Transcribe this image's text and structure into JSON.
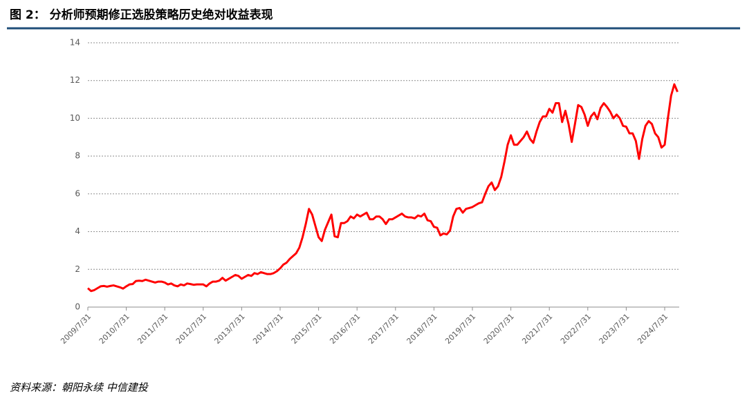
{
  "title": "图 2：  分析师预期修正选股策略历史绝对收益表现",
  "source": "资料来源：朝阳永续  中信建投",
  "chart_data": {
    "type": "line",
    "color": "#ff0000",
    "grid": true,
    "ylim": [
      0,
      14
    ],
    "yticks": [
      0,
      2,
      4,
      6,
      8,
      10,
      12,
      14
    ],
    "categories": [
      "2009/7/31",
      null,
      null,
      null,
      null,
      null,
      null,
      null,
      null,
      null,
      null,
      null,
      "2010/7/31",
      null,
      null,
      null,
      null,
      null,
      null,
      null,
      null,
      null,
      null,
      null,
      "2011/7/31",
      null,
      null,
      null,
      null,
      null,
      null,
      null,
      null,
      null,
      null,
      null,
      "2012/7/31",
      null,
      null,
      null,
      null,
      null,
      null,
      null,
      null,
      null,
      null,
      null,
      "2013/7/31",
      null,
      null,
      null,
      null,
      null,
      null,
      null,
      null,
      null,
      null,
      null,
      "2014/7/31",
      null,
      null,
      null,
      null,
      null,
      null,
      null,
      null,
      null,
      null,
      null,
      "2015/7/31",
      null,
      null,
      null,
      null,
      null,
      null,
      null,
      null,
      null,
      null,
      null,
      "2016/7/31",
      null,
      null,
      null,
      null,
      null,
      null,
      null,
      null,
      null,
      null,
      null,
      "2017/7/31",
      null,
      null,
      null,
      null,
      null,
      null,
      null,
      null,
      null,
      null,
      null,
      "2018/7/31",
      null,
      null,
      null,
      null,
      null,
      null,
      null,
      null,
      null,
      null,
      null,
      "2019/7/31",
      null,
      null,
      null,
      null,
      null,
      null,
      null,
      null,
      null,
      null,
      null,
      "2020/7/31",
      null,
      null,
      null,
      null,
      null,
      null,
      null,
      null,
      null,
      null,
      null,
      "2021/7/31",
      null,
      null,
      null,
      null,
      null,
      null,
      null,
      null,
      null,
      null,
      null,
      "2022/7/31",
      null,
      null,
      null,
      null,
      null,
      null,
      null,
      null,
      null,
      null,
      null,
      "2023/7/31",
      null,
      null,
      null,
      null,
      null,
      null,
      null,
      null,
      null,
      null,
      null,
      "2024/7/31",
      null,
      null,
      null,
      null
    ],
    "values": [
      1.0,
      0.85,
      0.9,
      1.0,
      1.1,
      1.12,
      1.08,
      1.12,
      1.15,
      1.1,
      1.05,
      0.98,
      1.1,
      1.2,
      1.22,
      1.38,
      1.4,
      1.38,
      1.45,
      1.4,
      1.35,
      1.3,
      1.35,
      1.35,
      1.3,
      1.2,
      1.25,
      1.15,
      1.1,
      1.2,
      1.15,
      1.25,
      1.22,
      1.18,
      1.2,
      1.2,
      1.2,
      1.1,
      1.25,
      1.35,
      1.35,
      1.4,
      1.55,
      1.4,
      1.5,
      1.6,
      1.7,
      1.65,
      1.5,
      1.6,
      1.7,
      1.65,
      1.8,
      1.75,
      1.85,
      1.8,
      1.75,
      1.75,
      1.8,
      1.9,
      2.05,
      2.25,
      2.35,
      2.55,
      2.7,
      2.85,
      3.15,
      3.7,
      4.4,
      5.2,
      4.9,
      4.3,
      3.7,
      3.5,
      4.1,
      4.5,
      4.9,
      3.75,
      3.7,
      4.45,
      4.45,
      4.55,
      4.8,
      4.7,
      4.9,
      4.8,
      4.9,
      5.0,
      4.65,
      4.65,
      4.8,
      4.8,
      4.65,
      4.4,
      4.65,
      4.65,
      4.75,
      4.85,
      4.95,
      4.8,
      4.75,
      4.75,
      4.7,
      4.85,
      4.8,
      4.95,
      4.6,
      4.55,
      4.25,
      4.2,
      3.8,
      3.9,
      3.85,
      4.05,
      4.8,
      5.2,
      5.25,
      5.0,
      5.2,
      5.25,
      5.3,
      5.4,
      5.5,
      5.55,
      6.0,
      6.4,
      6.6,
      6.2,
      6.4,
      6.9,
      7.7,
      8.6,
      9.1,
      8.6,
      8.6,
      8.8,
      9.0,
      9.3,
      8.9,
      8.7,
      9.3,
      9.8,
      10.1,
      10.1,
      10.5,
      10.3,
      10.8,
      10.8,
      9.8,
      10.4,
      9.7,
      8.75,
      9.7,
      10.7,
      10.6,
      10.2,
      9.6,
      10.1,
      10.3,
      9.95,
      10.55,
      10.8,
      10.6,
      10.35,
      10.0,
      10.2,
      10.0,
      9.6,
      9.55,
      9.2,
      9.2,
      8.8,
      7.85,
      8.9,
      9.6,
      9.85,
      9.7,
      9.2,
      9.0,
      8.45,
      8.6,
      10.0,
      11.2,
      11.8,
      11.4
    ]
  }
}
